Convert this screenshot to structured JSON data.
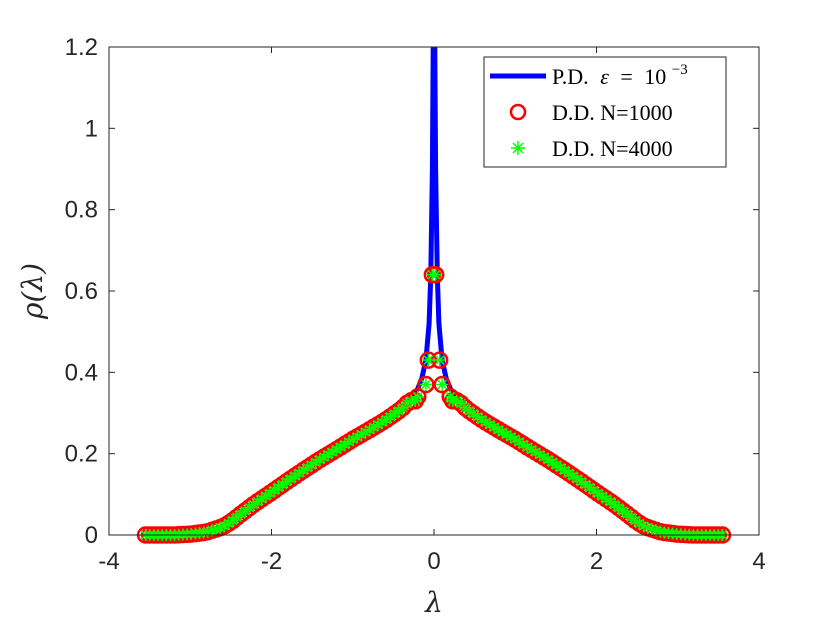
{
  "chart_data": {
    "type": "line",
    "title": "",
    "xlabel": "λ",
    "ylabel": "ρ(λ)",
    "xlim": [
      -4,
      4
    ],
    "ylim": [
      0,
      1.2
    ],
    "x_ticks": [
      "-4",
      "-2",
      "0",
      "2",
      "4"
    ],
    "y_ticks": [
      "0",
      "0.2",
      "0.4",
      "0.6",
      "0.8",
      "1",
      "1.2"
    ],
    "x_tick_values": [
      -4,
      -2,
      0,
      2,
      4
    ],
    "y_tick_values": [
      0,
      0.2,
      0.4,
      0.6,
      0.8,
      1.0,
      1.2
    ],
    "grid": false,
    "legend_position": "top-right",
    "series": [
      {
        "name": "P.D. ε = 10⁻³",
        "legend_prefix": "P.D.",
        "legend_epsilon": "ε",
        "legend_equals": "=",
        "legend_base": "10",
        "legend_exponent": "−3",
        "style": "line",
        "color": "#0000ff",
        "x": [
          -3.5,
          -3.2,
          -3.0,
          -2.8,
          -2.6,
          -2.5,
          -2.4,
          -2.2,
          -2.0,
          -1.8,
          -1.6,
          -1.4,
          -1.2,
          -1.0,
          -0.8,
          -0.6,
          -0.4,
          -0.3,
          -0.2,
          -0.15,
          -0.1,
          -0.06,
          -0.04,
          -0.02,
          -0.01,
          0,
          0.01,
          0.02,
          0.04,
          0.06,
          0.1,
          0.15,
          0.2,
          0.3,
          0.4,
          0.6,
          0.8,
          1.0,
          1.2,
          1.4,
          1.6,
          1.8,
          2.0,
          2.2,
          2.4,
          2.5,
          2.6,
          2.8,
          3.0,
          3.2,
          3.5
        ],
        "y": [
          0.0,
          0.0,
          0.002,
          0.007,
          0.02,
          0.032,
          0.048,
          0.078,
          0.105,
          0.133,
          0.16,
          0.186,
          0.21,
          0.235,
          0.258,
          0.282,
          0.31,
          0.33,
          0.36,
          0.385,
          0.43,
          0.52,
          0.64,
          0.9,
          1.2,
          1.4,
          1.2,
          0.9,
          0.64,
          0.52,
          0.43,
          0.385,
          0.36,
          0.33,
          0.31,
          0.282,
          0.258,
          0.235,
          0.21,
          0.186,
          0.16,
          0.133,
          0.105,
          0.078,
          0.048,
          0.032,
          0.02,
          0.007,
          0.002,
          0.0,
          0.0
        ]
      },
      {
        "name": "D.D. N=1000",
        "style": "marker-circle",
        "color": "#ff0000",
        "x_min": -3.55,
        "x_max": 3.55,
        "count": 140,
        "special": [
          [
            -0.2,
            0.34
          ],
          [
            -0.1,
            0.37
          ],
          [
            -0.07,
            0.43
          ],
          [
            0.07,
            0.43
          ],
          [
            0.1,
            0.37
          ],
          [
            0.2,
            0.34
          ],
          [
            -0.02,
            0.64
          ],
          [
            0.02,
            0.64
          ]
        ]
      },
      {
        "name": "D.D. N=4000",
        "style": "marker-star",
        "color": "#00ff00",
        "x_min": -3.55,
        "x_max": 3.55,
        "count": 140,
        "special": [
          [
            -0.2,
            0.34
          ],
          [
            -0.1,
            0.37
          ],
          [
            -0.07,
            0.43
          ],
          [
            0.07,
            0.43
          ],
          [
            0.1,
            0.37
          ],
          [
            0.2,
            0.34
          ],
          [
            -0.02,
            0.64
          ],
          [
            0.02,
            0.64
          ]
        ]
      }
    ]
  }
}
